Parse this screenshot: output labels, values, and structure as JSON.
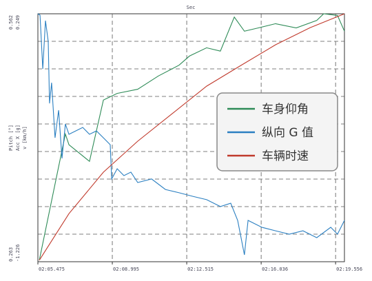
{
  "chart_data": {
    "type": "line",
    "xlabel": "Sec",
    "xlim": [
      0,
      14.5
    ],
    "xticks": [
      {
        "value": 0,
        "label": "02:05.475"
      },
      {
        "value": 3.52,
        "label": "02:08.995"
      },
      {
        "value": 7.04,
        "label": "02:12.515"
      },
      {
        "value": 10.561,
        "label": "02:16.036"
      },
      {
        "value": 14.081,
        "label": "02:19.556"
      }
    ],
    "axes": [
      {
        "label": "Pitch [°]",
        "ylim": [
          0.263,
          0.562
        ]
      },
      {
        "label": "Acc X [g]",
        "ylim": [
          -1.226,
          0.249
        ]
      },
      {
        "label": "v [km/h]",
        "ylim": [
          0,
          100
        ]
      }
    ],
    "grid": true,
    "legend": "right",
    "series": [
      {
        "name": "车身仰角",
        "color": "#2e8b57",
        "axis": 0,
        "x": [
          0.07,
          1.3,
          1.47,
          2.44,
          3.1,
          3.75,
          4.72,
          5.7,
          6.68,
          7.17,
          7.98,
          8.63,
          9.29,
          9.77,
          10.43,
          11.24,
          12.22,
          13.19,
          13.52,
          14.17,
          14.5
        ],
        "values": [
          0.265,
          0.417,
          0.404,
          0.384,
          0.458,
          0.466,
          0.471,
          0.487,
          0.5,
          0.511,
          0.521,
          0.517,
          0.558,
          0.541,
          0.545,
          0.55,
          0.545,
          0.554,
          0.562,
          0.56,
          0.541
        ]
      },
      {
        "name": "纵向 G 值",
        "color": "#2a7fc1",
        "axis": 1,
        "x": [
          0,
          0.1,
          0.23,
          0.36,
          0.49,
          0.55,
          0.65,
          0.81,
          0.98,
          1.14,
          1.3,
          1.47,
          1.79,
          2.12,
          2.44,
          2.77,
          3.1,
          3.42,
          3.49,
          3.75,
          4.07,
          4.4,
          4.72,
          5.38,
          6.03,
          6.68,
          7.33,
          7.98,
          8.63,
          9.12,
          9.45,
          9.77,
          9.94,
          10.59,
          11.24,
          11.89,
          12.54,
          13.19,
          13.85,
          14.17,
          14.5
        ],
        "values": [
          0.249,
          0.241,
          -0.079,
          0.208,
          0.085,
          -0.284,
          -0.161,
          -0.489,
          -0.325,
          -0.611,
          -0.407,
          -0.468,
          -0.448,
          -0.427,
          -0.468,
          -0.448,
          -0.489,
          -0.53,
          -0.734,
          -0.673,
          -0.714,
          -0.693,
          -0.755,
          -0.734,
          -0.796,
          -0.816,
          -0.837,
          -0.857,
          -0.898,
          -0.878,
          -0.98,
          -1.185,
          -0.98,
          -1.021,
          -1.042,
          -1.062,
          -1.042,
          -1.083,
          -1.021,
          -1.062,
          -0.98
        ]
      },
      {
        "name": "车辆时速",
        "color": "#c0392b",
        "axis": 2,
        "x": [
          0.07,
          1.47,
          3.1,
          4.72,
          6.35,
          7.98,
          9.61,
          11.24,
          12.87,
          14.5
        ],
        "values": [
          0.6,
          19.4,
          36.1,
          48.6,
          59.7,
          70.8,
          79.2,
          87.5,
          94.4,
          100
        ]
      }
    ]
  }
}
